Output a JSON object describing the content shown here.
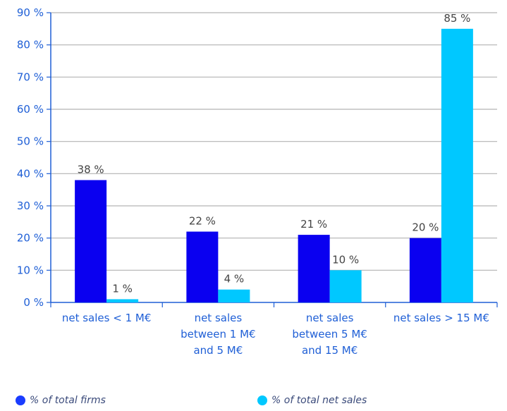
{
  "chart_data": {
    "type": "bar",
    "categories": [
      [
        "net sales < 1 M€"
      ],
      [
        "net sales",
        "between 1 M€",
        "and 5 M€"
      ],
      [
        "net sales",
        "between 5 M€",
        "and 15 M€"
      ],
      [
        "net sales > 15 M€"
      ]
    ],
    "series": [
      {
        "name": "% of total firms",
        "color": "#0a00f0",
        "values": [
          38,
          22,
          21,
          20
        ],
        "labels": [
          "38 %",
          "22 %",
          "21 %",
          "20 %"
        ]
      },
      {
        "name": "% of total net sales",
        "color": "#00c8ff",
        "values": [
          1,
          4,
          10,
          85
        ],
        "labels": [
          "1 %",
          "4 %",
          "10 %",
          "85 %"
        ]
      }
    ],
    "yticks": [
      "0 %",
      "10 %",
      "20 %",
      "30 %",
      "40 %",
      "50 %",
      "60 %",
      "70 %",
      "80 %",
      "90 %"
    ],
    "ylim": [
      0,
      90
    ],
    "grid": true,
    "legend_position": "bottom",
    "title": "",
    "xlabel": "",
    "ylabel": ""
  }
}
